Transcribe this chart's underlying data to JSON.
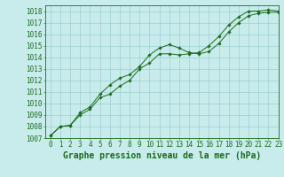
{
  "xlabel": "Graphe pression niveau de la mer (hPa)",
  "xlim": [
    -0.5,
    23
  ],
  "ylim": [
    1007,
    1018.5
  ],
  "yticks": [
    1007,
    1008,
    1009,
    1010,
    1011,
    1012,
    1013,
    1014,
    1015,
    1016,
    1017,
    1018
  ],
  "xticks": [
    0,
    1,
    2,
    3,
    4,
    5,
    6,
    7,
    8,
    9,
    10,
    11,
    12,
    13,
    14,
    15,
    16,
    17,
    18,
    19,
    20,
    21,
    22,
    23
  ],
  "line1_x": [
    0,
    1,
    2,
    3,
    4,
    5,
    6,
    7,
    8,
    9,
    10,
    11,
    12,
    13,
    14,
    15,
    16,
    17,
    18,
    19,
    20,
    21,
    22,
    23
  ],
  "line1_y": [
    1007.2,
    1008.0,
    1008.1,
    1009.2,
    1009.7,
    1010.8,
    1011.6,
    1012.2,
    1012.5,
    1013.2,
    1014.2,
    1014.8,
    1015.1,
    1014.8,
    1014.4,
    1014.3,
    1014.5,
    1015.2,
    1016.2,
    1017.0,
    1017.6,
    1017.8,
    1017.9,
    1017.9
  ],
  "line2_x": [
    0,
    1,
    2,
    3,
    4,
    5,
    6,
    7,
    8,
    9,
    10,
    11,
    12,
    13,
    14,
    15,
    16,
    17,
    18,
    19,
    20,
    21,
    22,
    23
  ],
  "line2_y": [
    1007.2,
    1008.0,
    1008.1,
    1009.0,
    1009.5,
    1010.5,
    1010.8,
    1011.5,
    1012.0,
    1013.0,
    1013.5,
    1014.3,
    1014.3,
    1014.2,
    1014.3,
    1014.4,
    1015.0,
    1015.8,
    1016.8,
    1017.5,
    1018.0,
    1018.0,
    1018.1,
    1018.0
  ],
  "line_color": "#1a6b1a",
  "marker_color": "#1a6b1a",
  "bg_color": "#c8ecec",
  "grid_color": "#9ecece",
  "label_color": "#1a6b1a",
  "xlabel_fontsize": 7,
  "tick_fontsize": 5.5
}
